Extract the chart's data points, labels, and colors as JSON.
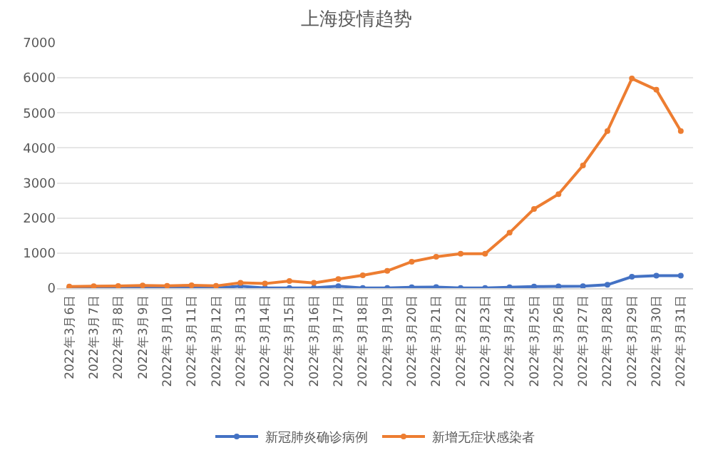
{
  "chart_data": {
    "type": "line",
    "title": "上海疫情趋势",
    "categories": [
      "2022年3月6日",
      "2022年3月7日",
      "2022年3月8日",
      "2022年3月9日",
      "2022年3月10日",
      "2022年3月11日",
      "2022年3月12日",
      "2022年3月13日",
      "2022年3月14日",
      "2022年3月15日",
      "2022年3月16日",
      "2022年3月17日",
      "2022年3月18日",
      "2022年3月19日",
      "2022年3月20日",
      "2022年3月21日",
      "2022年3月22日",
      "2022年3月23日",
      "2022年3月24日",
      "2022年3月25日",
      "2022年3月26日",
      "2022年3月27日",
      "2022年3月28日",
      "2022年3月29日",
      "2022年3月30日",
      "2022年3月31日"
    ],
    "series": [
      {
        "name": "新冠肺炎确诊病例",
        "color": "#4472c4",
        "values": [
          3,
          4,
          3,
          5,
          11,
          3,
          5,
          55,
          4,
          5,
          8,
          57,
          4,
          4,
          24,
          31,
          4,
          5,
          24,
          45,
          50,
          55,
          96,
          326,
          355,
          358
        ]
      },
      {
        "name": "新增无症状感染者",
        "color": "#ed7d31",
        "values": [
          45,
          55,
          62,
          78,
          68,
          83,
          64,
          152,
          130,
          202,
          150,
          260,
          365,
          492,
          755,
          896,
          981,
          983,
          1580,
          2260,
          2680,
          3500,
          4480,
          5980,
          5660,
          4480
        ]
      }
    ],
    "ylim": [
      0,
      7000
    ],
    "yticks": [
      0,
      1000,
      2000,
      3000,
      4000,
      5000,
      6000,
      7000
    ],
    "grid": "y",
    "legend": "bottom",
    "marker": "circle",
    "line_style": "solid"
  }
}
